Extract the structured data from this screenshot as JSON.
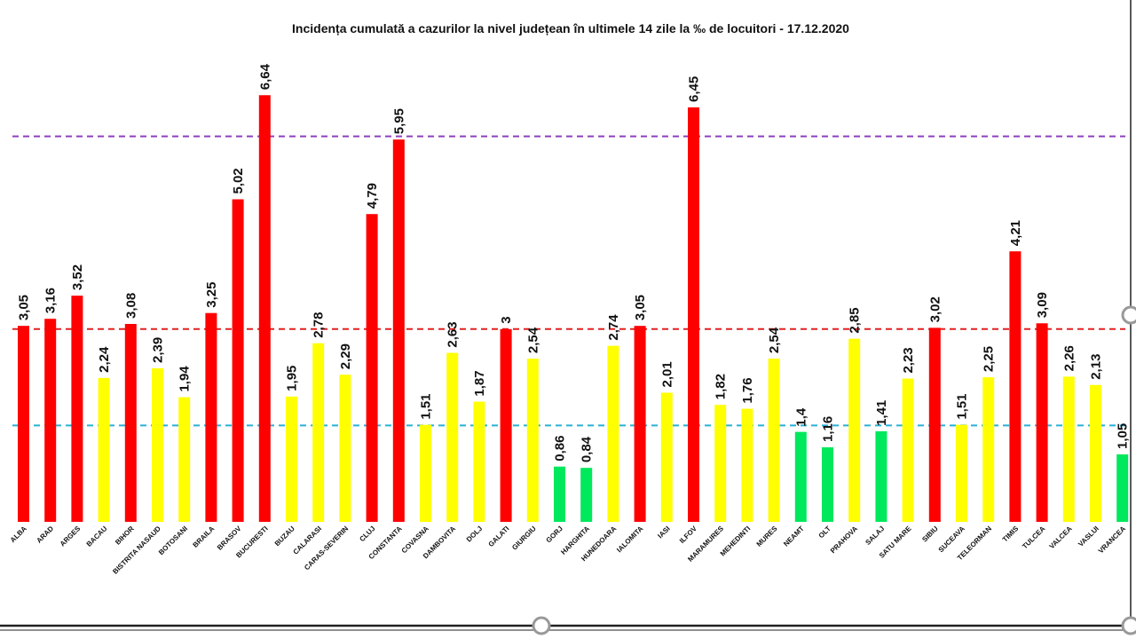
{
  "chart_data": {
    "type": "bar",
    "title": "Incidența cumulată a cazurilor la nivel județean în ultimele 14 zile la ‰ de locuitori - 17.12.2020",
    "xlabel": "",
    "ylabel": "",
    "ylim": [
      0,
      7
    ],
    "grid": false,
    "legend": "none",
    "categories": [
      "ALBA",
      "ARAD",
      "ARGES",
      "BACAU",
      "BIHOR",
      "BISTRITA NASAUD",
      "BOTOSANI",
      "BRAILA",
      "BRASOV",
      "BUCURESTI",
      "BUZAU",
      "CALARASI",
      "CARAS-SEVERIN",
      "CLUJ",
      "CONSTANTA",
      "COVASNA",
      "DAMBOVITA",
      "DOLJ",
      "GALATI",
      "GIURGIU",
      "GORJ",
      "HARGHITA",
      "HUNEDOARA",
      "IALOMITA",
      "IASI",
      "ILFOV",
      "MARAMURES",
      "MEHEDINTI",
      "MURES",
      "NEAMT",
      "OLT",
      "PRAHOVA",
      "SALAJ",
      "SATU MARE",
      "SIBIU",
      "SUCEAVA",
      "TELEORMAN",
      "TIMIS",
      "TULCEA",
      "VALCEA",
      "VASLUI",
      "VRANCEA"
    ],
    "values": [
      3.05,
      3.16,
      3.52,
      2.24,
      3.08,
      2.39,
      1.94,
      3.25,
      5.02,
      6.64,
      1.95,
      2.78,
      2.29,
      4.79,
      5.95,
      1.51,
      2.63,
      1.87,
      3,
      2.54,
      0.86,
      0.84,
      2.74,
      3.05,
      2.01,
      6.45,
      1.82,
      1.76,
      2.54,
      1.4,
      1.16,
      2.85,
      1.41,
      2.23,
      3.02,
      1.51,
      2.25,
      4.21,
      3.09,
      2.26,
      2.13,
      1.05
    ],
    "value_labels": [
      "3,05",
      "3,16",
      "3,52",
      "2,24",
      "3,08",
      "2,39",
      "1,94",
      "3,25",
      "5,02",
      "6,64",
      "1,95",
      "2,78",
      "2,29",
      "4,79",
      "5,95",
      "1,51",
      "2,63",
      "1,87",
      "3",
      "2,54",
      "0,86",
      "0,84",
      "2,74",
      "3,05",
      "2,01",
      "6,45",
      "1,82",
      "1,76",
      "2,54",
      "1,4",
      "1,16",
      "2,85",
      "1,41",
      "2,23",
      "3,02",
      "1,51",
      "2,25",
      "4,21",
      "3,09",
      "2,26",
      "2,13",
      "1,05"
    ],
    "bar_colors": [
      "red",
      "red",
      "red",
      "yellow",
      "red",
      "yellow",
      "yellow",
      "red",
      "red",
      "red",
      "yellow",
      "yellow",
      "yellow",
      "red",
      "red",
      "yellow",
      "yellow",
      "yellow",
      "red",
      "yellow",
      "green",
      "green",
      "yellow",
      "red",
      "yellow",
      "red",
      "yellow",
      "yellow",
      "yellow",
      "green",
      "green",
      "yellow",
      "green",
      "yellow",
      "red",
      "yellow",
      "yellow",
      "red",
      "red",
      "yellow",
      "yellow",
      "green"
    ],
    "reference_lines": [
      {
        "value": 6,
        "color": "#8e3fbf",
        "style": "dashed"
      },
      {
        "value": 3,
        "color": "#e02020",
        "style": "dashed"
      },
      {
        "value": 1.5,
        "color": "#2ab0d6",
        "style": "dashed"
      }
    ]
  },
  "colors": {
    "red": "#ff0000",
    "yellow": "#ffff00",
    "green": "#00e85c",
    "frame": "#222222",
    "handle_stroke": "#999999"
  }
}
